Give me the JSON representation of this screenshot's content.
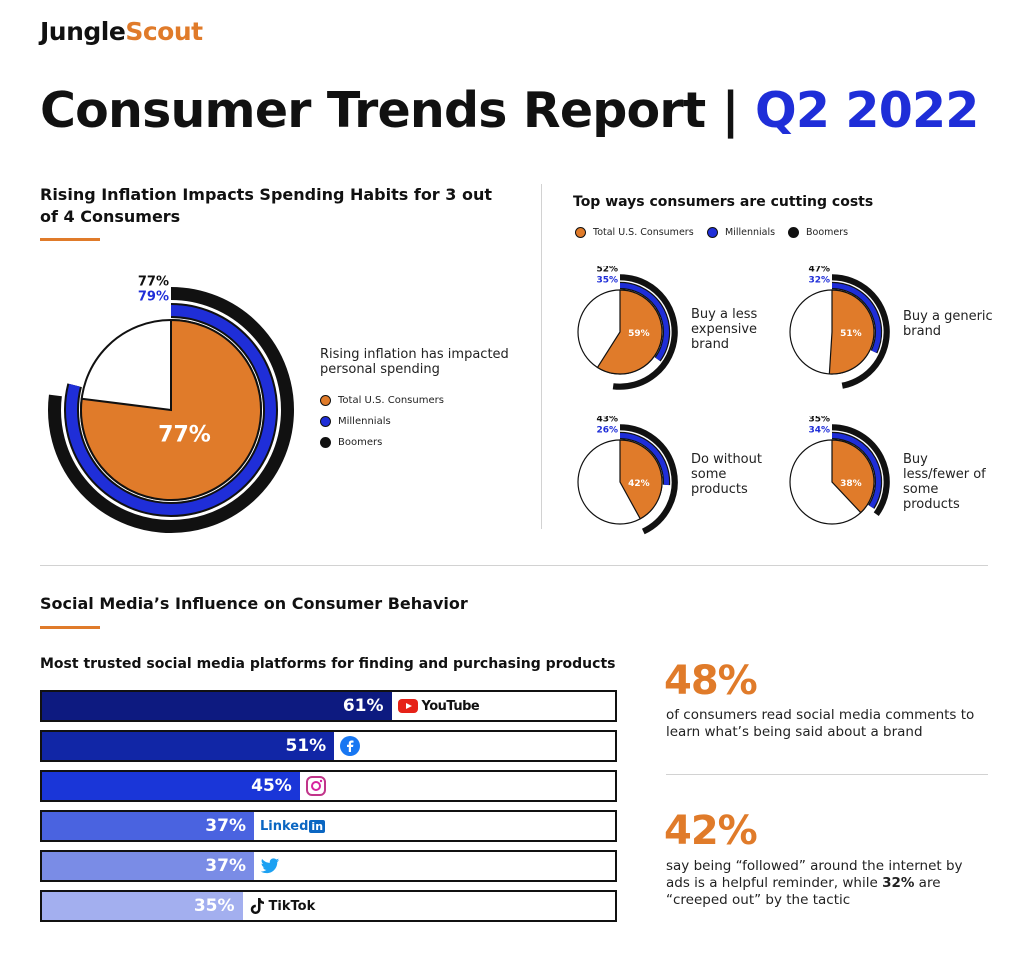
{
  "brand": {
    "name_part1": "Jungle",
    "name_part2": "Scout",
    "accent_color": "#e07b2a"
  },
  "title": {
    "main": "Consumer Trends Report |",
    "period": "Q2 2022",
    "period_color": "#1f2ed8"
  },
  "legend": {
    "total": "Total U.S. Consumers",
    "millennials": "Millennials",
    "boomers": "Boomers"
  },
  "colors": {
    "total": "#e07b2a",
    "millennials": "#1f2ed8",
    "boomers": "#111111"
  },
  "inflation": {
    "heading": "Rising Inflation Impacts Spending Habits for 3 out of 4 Consumers",
    "description": "Rising inflation has impacted personal spending",
    "boomers_label": "77%",
    "millennials_label": "79%",
    "total_label": "77%"
  },
  "cutting": {
    "heading": "Top ways consumers are cutting costs",
    "items": [
      {
        "label": "Buy a less expensive brand",
        "boomers_label": "52%",
        "millennials_label": "35%",
        "total_label": "59%"
      },
      {
        "label": "Buy a generic brand",
        "boomers_label": "47%",
        "millennials_label": "32%",
        "total_label": "51%"
      },
      {
        "label": "Do without some products",
        "boomers_label": "43%",
        "millennials_label": "26%",
        "total_label": "42%"
      },
      {
        "label": "Buy less/fewer of some products",
        "boomers_label": "35%",
        "millennials_label": "34%",
        "total_label": "38%"
      }
    ]
  },
  "social": {
    "heading": "Social Media’s Influence on Consumer Behavior",
    "subheading": "Most trusted social media platforms for finding and purchasing products",
    "platforms": [
      {
        "name": "YouTube",
        "label": "61%",
        "icon": "youtube-icon",
        "color": "#0d1a80"
      },
      {
        "name": "Facebook",
        "label": "51%",
        "icon": "facebook-icon",
        "color": "#1126a6"
      },
      {
        "name": "Instagram",
        "label": "45%",
        "icon": "instagram-icon",
        "color": "#1a36d8"
      },
      {
        "name": "LinkedIn",
        "label": "37%",
        "icon": "linkedin-icon",
        "color": "#4a63e0"
      },
      {
        "name": "Twitter",
        "label": "37%",
        "icon": "twitter-icon",
        "color": "#7a8ce6"
      },
      {
        "name": "TikTok",
        "label": "35%",
        "icon": "tiktok-icon",
        "color": "#a3afef"
      }
    ],
    "linkedin_text": "Linked",
    "linkedin_in": "in",
    "tiktok_text": "TikTok",
    "youtube_text": "YouTube",
    "stat1": {
      "value": "48%",
      "text": "of consumers read social media comments to learn what’s being said about a brand"
    },
    "stat2": {
      "value": "42%",
      "text_before": "say being “followed” around the internet by ads is a helpful reminder, while ",
      "text_bold": "32%",
      "text_after": " are “creeped out” by the tactic"
    }
  },
  "chart_data": [
    {
      "type": "pie",
      "title": "Rising Inflation Impacts Spending Habits for 3 out of 4 Consumers",
      "series": [
        {
          "name": "Total U.S. Consumers",
          "value": 77
        },
        {
          "name": "Millennials",
          "value": 79
        },
        {
          "name": "Boomers",
          "value": 77
        }
      ]
    },
    {
      "type": "pie",
      "title": "Top ways consumers are cutting costs",
      "categories": [
        "Buy a less expensive brand",
        "Buy a generic brand",
        "Do without some products",
        "Buy less/fewer of some products"
      ],
      "series": [
        {
          "name": "Total U.S. Consumers",
          "values": [
            59,
            51,
            42,
            38
          ]
        },
        {
          "name": "Millennials",
          "values": [
            35,
            32,
            26,
            34
          ]
        },
        {
          "name": "Boomers",
          "values": [
            52,
            47,
            43,
            35
          ]
        }
      ]
    },
    {
      "type": "bar",
      "title": "Most trusted social media platforms for finding and purchasing products",
      "categories": [
        "YouTube",
        "Facebook",
        "Instagram",
        "LinkedIn",
        "Twitter",
        "TikTok"
      ],
      "values": [
        61,
        51,
        45,
        37,
        37,
        35
      ],
      "xlim": [
        0,
        100
      ]
    }
  ]
}
